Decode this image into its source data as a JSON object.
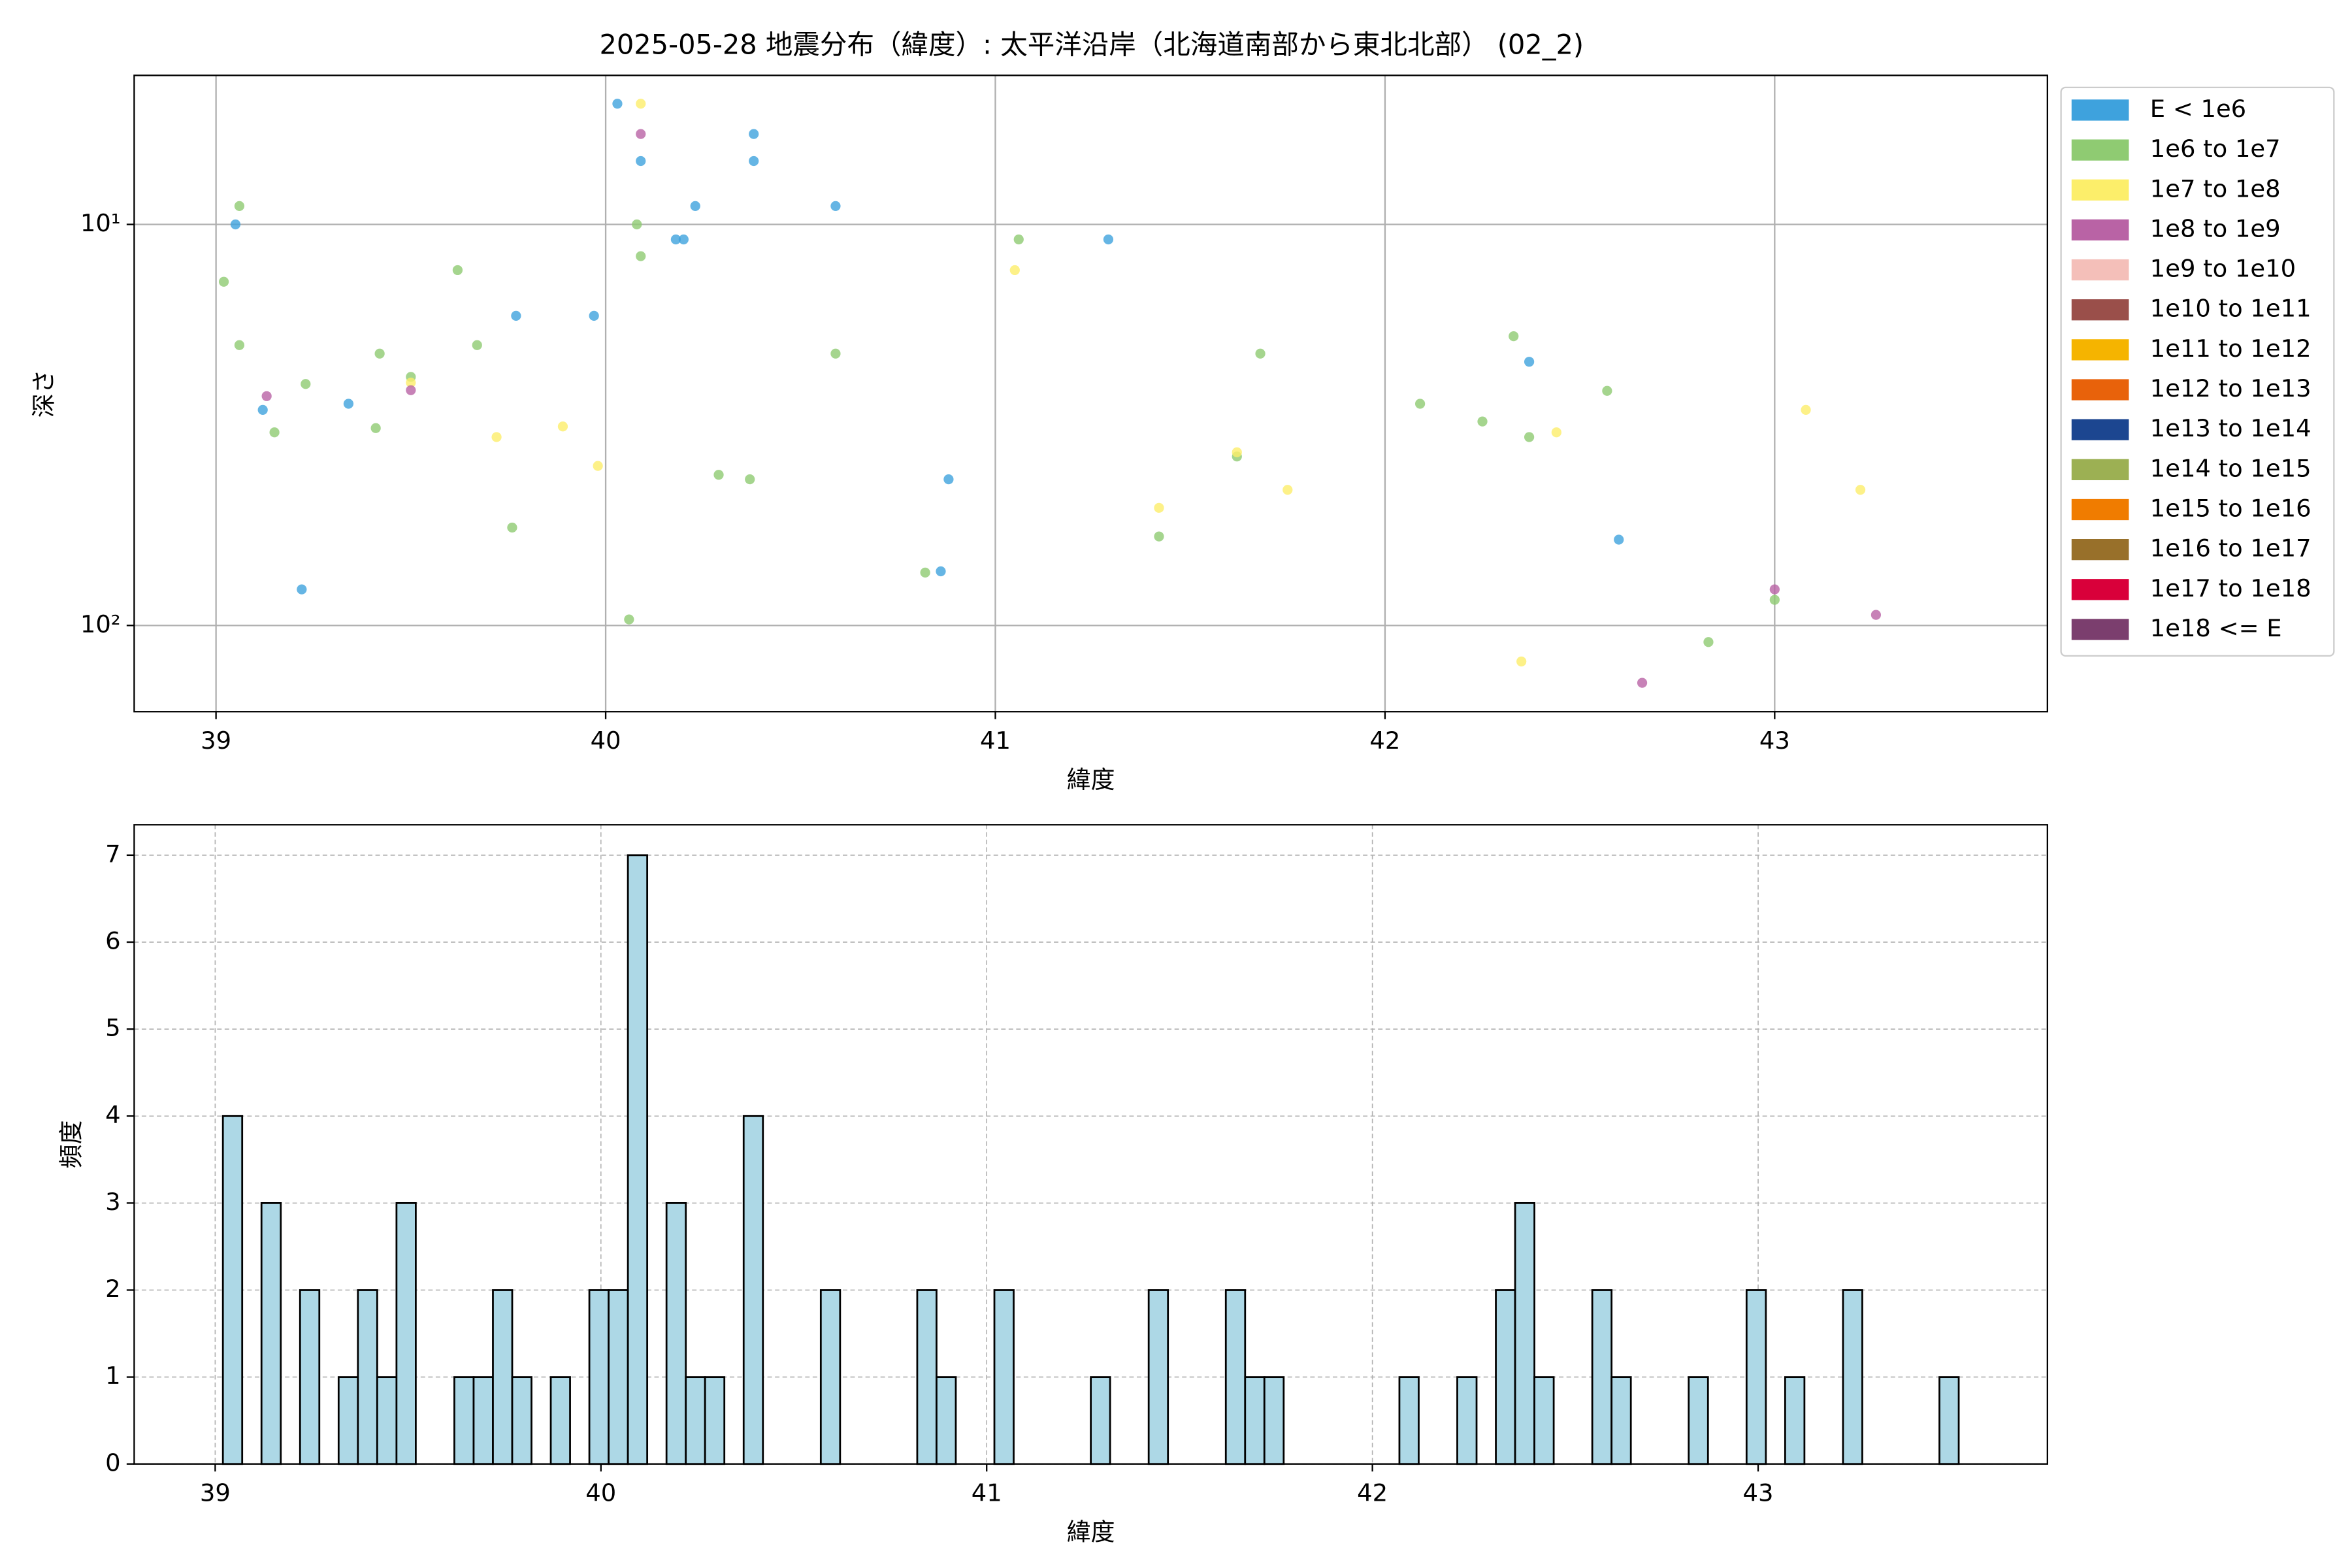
{
  "chart_data": [
    {
      "type": "scatter",
      "title": "2025-05-28 地震分布（緯度）: 太平洋沿岸（北海道南部から東北北部） (02_2)",
      "xlabel": "緯度",
      "ylabel": "深さ",
      "xlim": [
        38.79,
        43.7
      ],
      "xticks": [
        39,
        40,
        41,
        42,
        43
      ],
      "ylim": [
        4.25,
        164
      ],
      "log_y": true,
      "y_inverted": true,
      "yticks": [
        {
          "value": 10,
          "label": "10¹"
        },
        {
          "value": 100,
          "label": "10²"
        }
      ],
      "grid": true,
      "legend": "outside upper right",
      "series": [
        {
          "name": "E < 1e6",
          "color": "#3ea2dd",
          "x": [
            39.05,
            39.12,
            39.22,
            39.34,
            39.77,
            39.97,
            40.03,
            40.09,
            40.23,
            40.18,
            40.2,
            40.38,
            40.38,
            40.59,
            40.88,
            40.86,
            41.29,
            42.37,
            42.6
          ],
          "values": [
            10.0,
            29.0,
            81.3,
            28.0,
            16.9,
            16.9,
            5.0,
            6.95,
            9.0,
            10.9,
            10.9,
            5.95,
            6.95,
            9.0,
            43.2,
            73.3,
            10.9,
            22.0,
            61.1
          ]
        },
        {
          "name": "1e6 to 1e7",
          "color": "#8fcb72",
          "x": [
            39.02,
            39.06,
            39.06,
            39.15,
            39.23,
            39.42,
            39.41,
            39.5,
            39.62,
            39.67,
            39.76,
            40.08,
            40.09,
            40.06,
            40.29,
            40.37,
            40.59,
            40.82,
            41.06,
            41.42,
            41.62,
            41.68,
            42.09,
            42.25,
            42.33,
            42.37,
            42.57,
            42.83,
            43.0
          ],
          "values": [
            13.9,
            9.0,
            20.0,
            33.0,
            25.0,
            21.0,
            32.2,
            24.0,
            13.0,
            20.0,
            57.0,
            10.0,
            12.0,
            96.6,
            42.1,
            43.2,
            21.0,
            73.8,
            10.9,
            60.0,
            37.9,
            21.0,
            28.0,
            31.0,
            19.0,
            33.9,
            26.0,
            110,
            86.3
          ]
        },
        {
          "name": "1e7 to 1e8",
          "color": "#fcee6a",
          "x": [
            39.5,
            39.72,
            39.89,
            39.98,
            40.09,
            41.05,
            41.42,
            41.62,
            41.75,
            42.35,
            42.44,
            43.08,
            43.22
          ],
          "values": [
            24.8,
            33.9,
            31.9,
            40.0,
            5.0,
            13.0,
            50.9,
            37.0,
            45.9,
            123,
            33.0,
            29.0,
            45.9
          ]
        },
        {
          "name": "1e8 to 1e9",
          "color": "#b963a5",
          "x": [
            39.13,
            39.5,
            40.09,
            43.0,
            43.26,
            42.66
          ],
          "values": [
            26.8,
            25.9,
            5.95,
            81.3,
            94.1,
            139
          ]
        },
        {
          "name": "1e9 to 1e10",
          "color": "#f4bfb9",
          "x": [],
          "values": []
        },
        {
          "name": "1e10 to 1e11",
          "color": "#9a4f4a",
          "x": [],
          "values": []
        },
        {
          "name": "1e11 to 1e12",
          "color": "#f5b400",
          "x": [],
          "values": []
        },
        {
          "name": "1e12 to 1e13",
          "color": "#e8620b",
          "x": [],
          "values": []
        },
        {
          "name": "1e13 to 1e14",
          "color": "#1c4690",
          "x": [],
          "values": []
        },
        {
          "name": "1e14 to 1e15",
          "color": "#9cb053",
          "x": [],
          "values": []
        },
        {
          "name": "1e15 to 1e16",
          "color": "#f07c00",
          "x": [],
          "values": []
        },
        {
          "name": "1e16 to 1e17",
          "color": "#98702a",
          "x": [],
          "values": []
        },
        {
          "name": "1e17 to 1e18",
          "color": "#d9003a",
          "x": [],
          "values": []
        },
        {
          "name": "1e18 <= E",
          "color": "#7b3e6e",
          "x": [],
          "values": []
        }
      ]
    },
    {
      "type": "histogram",
      "xlabel": "緯度",
      "ylabel": "頻度",
      "xlim": [
        38.79,
        43.75
      ],
      "xticks": [
        39,
        40,
        41,
        42,
        43
      ],
      "ylim": [
        0,
        7.35
      ],
      "yticks": [
        0,
        1,
        2,
        3,
        4,
        5,
        6,
        7
      ],
      "grid": true,
      "color": "#add8e6",
      "edgecolor": "#000000",
      "bins": [
        39.02,
        39.07,
        39.12,
        39.17,
        39.22,
        39.27,
        39.32,
        39.37,
        39.42,
        39.47,
        39.52,
        39.57,
        39.62,
        39.67,
        39.72,
        39.77,
        39.82,
        39.87,
        39.92,
        39.97,
        40.02,
        40.07,
        40.12,
        40.17,
        40.22,
        40.27,
        40.32,
        40.37,
        40.42,
        40.47,
        40.52,
        40.57,
        40.62,
        40.67,
        40.72,
        40.77,
        40.82,
        40.87,
        40.92,
        40.97,
        41.02,
        41.07,
        41.12,
        41.17,
        41.22,
        41.27,
        41.32,
        41.37,
        41.42,
        41.47,
        41.52,
        41.57,
        41.62,
        41.67,
        41.72,
        41.77,
        41.82,
        41.87,
        41.92,
        41.97,
        42.02,
        42.07,
        42.12,
        42.17,
        42.22,
        42.27,
        42.32,
        42.37,
        42.42,
        42.47,
        42.52,
        42.57,
        42.62,
        42.67,
        42.72,
        42.77,
        42.82,
        42.87,
        42.92,
        42.97,
        43.02,
        43.07,
        43.12,
        43.17,
        43.22,
        43.27,
        43.32,
        43.37,
        43.42,
        43.47,
        43.52
      ],
      "values": [
        4,
        0,
        3,
        0,
        2,
        0,
        1,
        2,
        1,
        3,
        0,
        0,
        1,
        1,
        2,
        1,
        0,
        1,
        0,
        2,
        2,
        7,
        0,
        3,
        1,
        1,
        0,
        4,
        0,
        0,
        0,
        2,
        0,
        0,
        0,
        0,
        2,
        1,
        0,
        0,
        2,
        0,
        0,
        0,
        0,
        1,
        0,
        0,
        2,
        0,
        0,
        0,
        2,
        1,
        1,
        0,
        0,
        0,
        0,
        0,
        0,
        1,
        0,
        0,
        1,
        0,
        2,
        3,
        1,
        0,
        0,
        2,
        1,
        0,
        0,
        0,
        1,
        0,
        0,
        2,
        0,
        1,
        0,
        0,
        2,
        0,
        0,
        0,
        0,
        1
      ]
    }
  ]
}
